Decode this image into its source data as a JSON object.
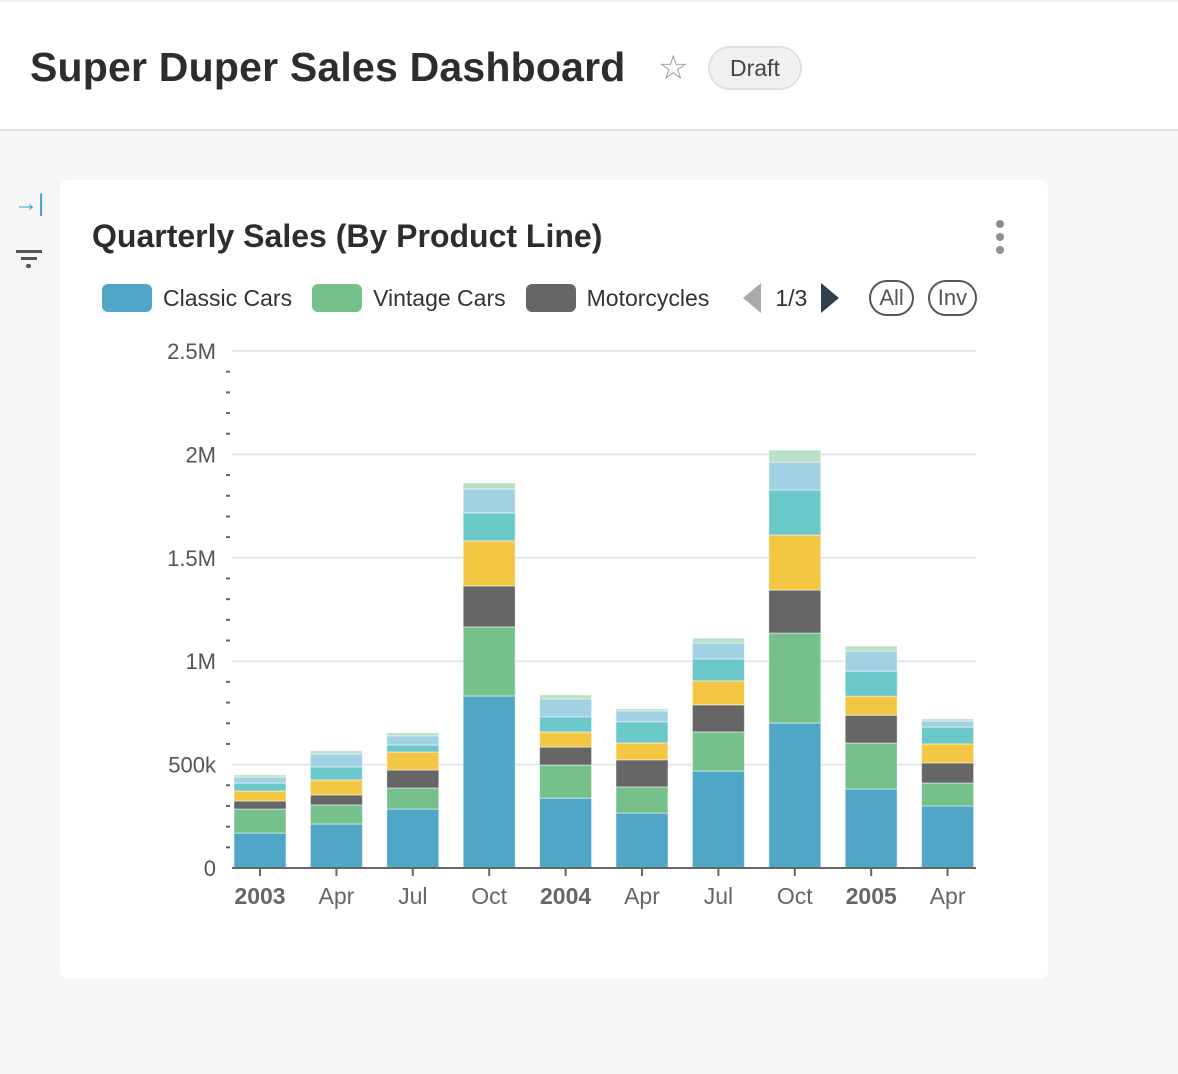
{
  "header": {
    "title": "Super Duper Sales Dashboard",
    "status_badge": "Draft",
    "star_icon": "star-outline-icon"
  },
  "sidebar": {
    "icons": [
      "expand-panel-icon",
      "filter-icon"
    ]
  },
  "card": {
    "title": "Quarterly Sales (By Product Line)",
    "menu_icon": "vertical-ellipsis-icon",
    "legend": {
      "items": [
        {
          "label": "Classic Cars",
          "color": "#4fa6c6"
        },
        {
          "label": "Vintage Cars",
          "color": "#76c08c"
        },
        {
          "label": "Motorcycles",
          "color": "#666666"
        }
      ],
      "page": "1/3",
      "all_label": "All",
      "inv_label": "Inv"
    }
  },
  "chart_data": {
    "type": "bar",
    "stacked": true,
    "categories": [
      "2003",
      "Apr",
      "Jul",
      "Oct",
      "2004",
      "Apr",
      "Jul",
      "Oct",
      "2005",
      "Apr"
    ],
    "bold_categories": [
      "2003",
      "2004",
      "2005"
    ],
    "ylim": [
      0,
      2500000
    ],
    "yticks": [
      "0",
      "500k",
      "1M",
      "1.5M",
      "2M",
      "2.5M"
    ],
    "grid": true,
    "legend": "top",
    "series": [
      {
        "name": "Classic Cars",
        "color": "#4fa6c6",
        "values": [
          169000,
          213000,
          285000,
          832000,
          338000,
          266000,
          469000,
          701000,
          382000,
          300000
        ]
      },
      {
        "name": "Vintage Cars",
        "color": "#76c08c",
        "values": [
          116000,
          92000,
          102000,
          334000,
          160000,
          126000,
          189000,
          435000,
          222000,
          111000
        ]
      },
      {
        "name": "Motorcycles",
        "color": "#666666",
        "values": [
          39000,
          48000,
          87000,
          198000,
          87000,
          131000,
          131000,
          208000,
          135000,
          97000
        ]
      },
      {
        "color": "#f3c744",
        "values": [
          48000,
          73000,
          87000,
          218000,
          73000,
          82000,
          116000,
          266000,
          92000,
          92000
        ]
      },
      {
        "color": "#6bc8c9",
        "values": [
          39000,
          63000,
          34000,
          135000,
          73000,
          102000,
          106000,
          218000,
          121000,
          82000
        ]
      },
      {
        "color": "#a1d1e2",
        "values": [
          29000,
          63000,
          44000,
          116000,
          87000,
          53000,
          77000,
          135000,
          97000,
          29000
        ]
      },
      {
        "color": "#b9e0c4",
        "values": [
          10000,
          15000,
          15000,
          29000,
          19000,
          10000,
          24000,
          58000,
          24000,
          10000
        ]
      }
    ]
  }
}
